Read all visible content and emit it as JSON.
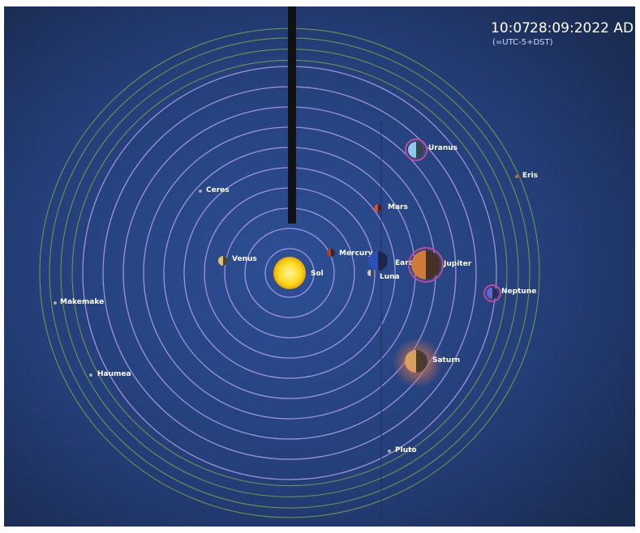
{
  "header": {
    "time": "10:07",
    "date": "28:09:2022 AD",
    "timezone": "(=UTC-5+DST)"
  },
  "bodies": [
    "Sol",
    "Mercury",
    "Venus",
    "Earth",
    "Luna",
    "Mars",
    "Jupiter",
    "Saturn",
    "Uranus",
    "Neptune",
    "Pluto",
    "Ceres",
    "Eris",
    "Makemake",
    "Haumea"
  ]
}
